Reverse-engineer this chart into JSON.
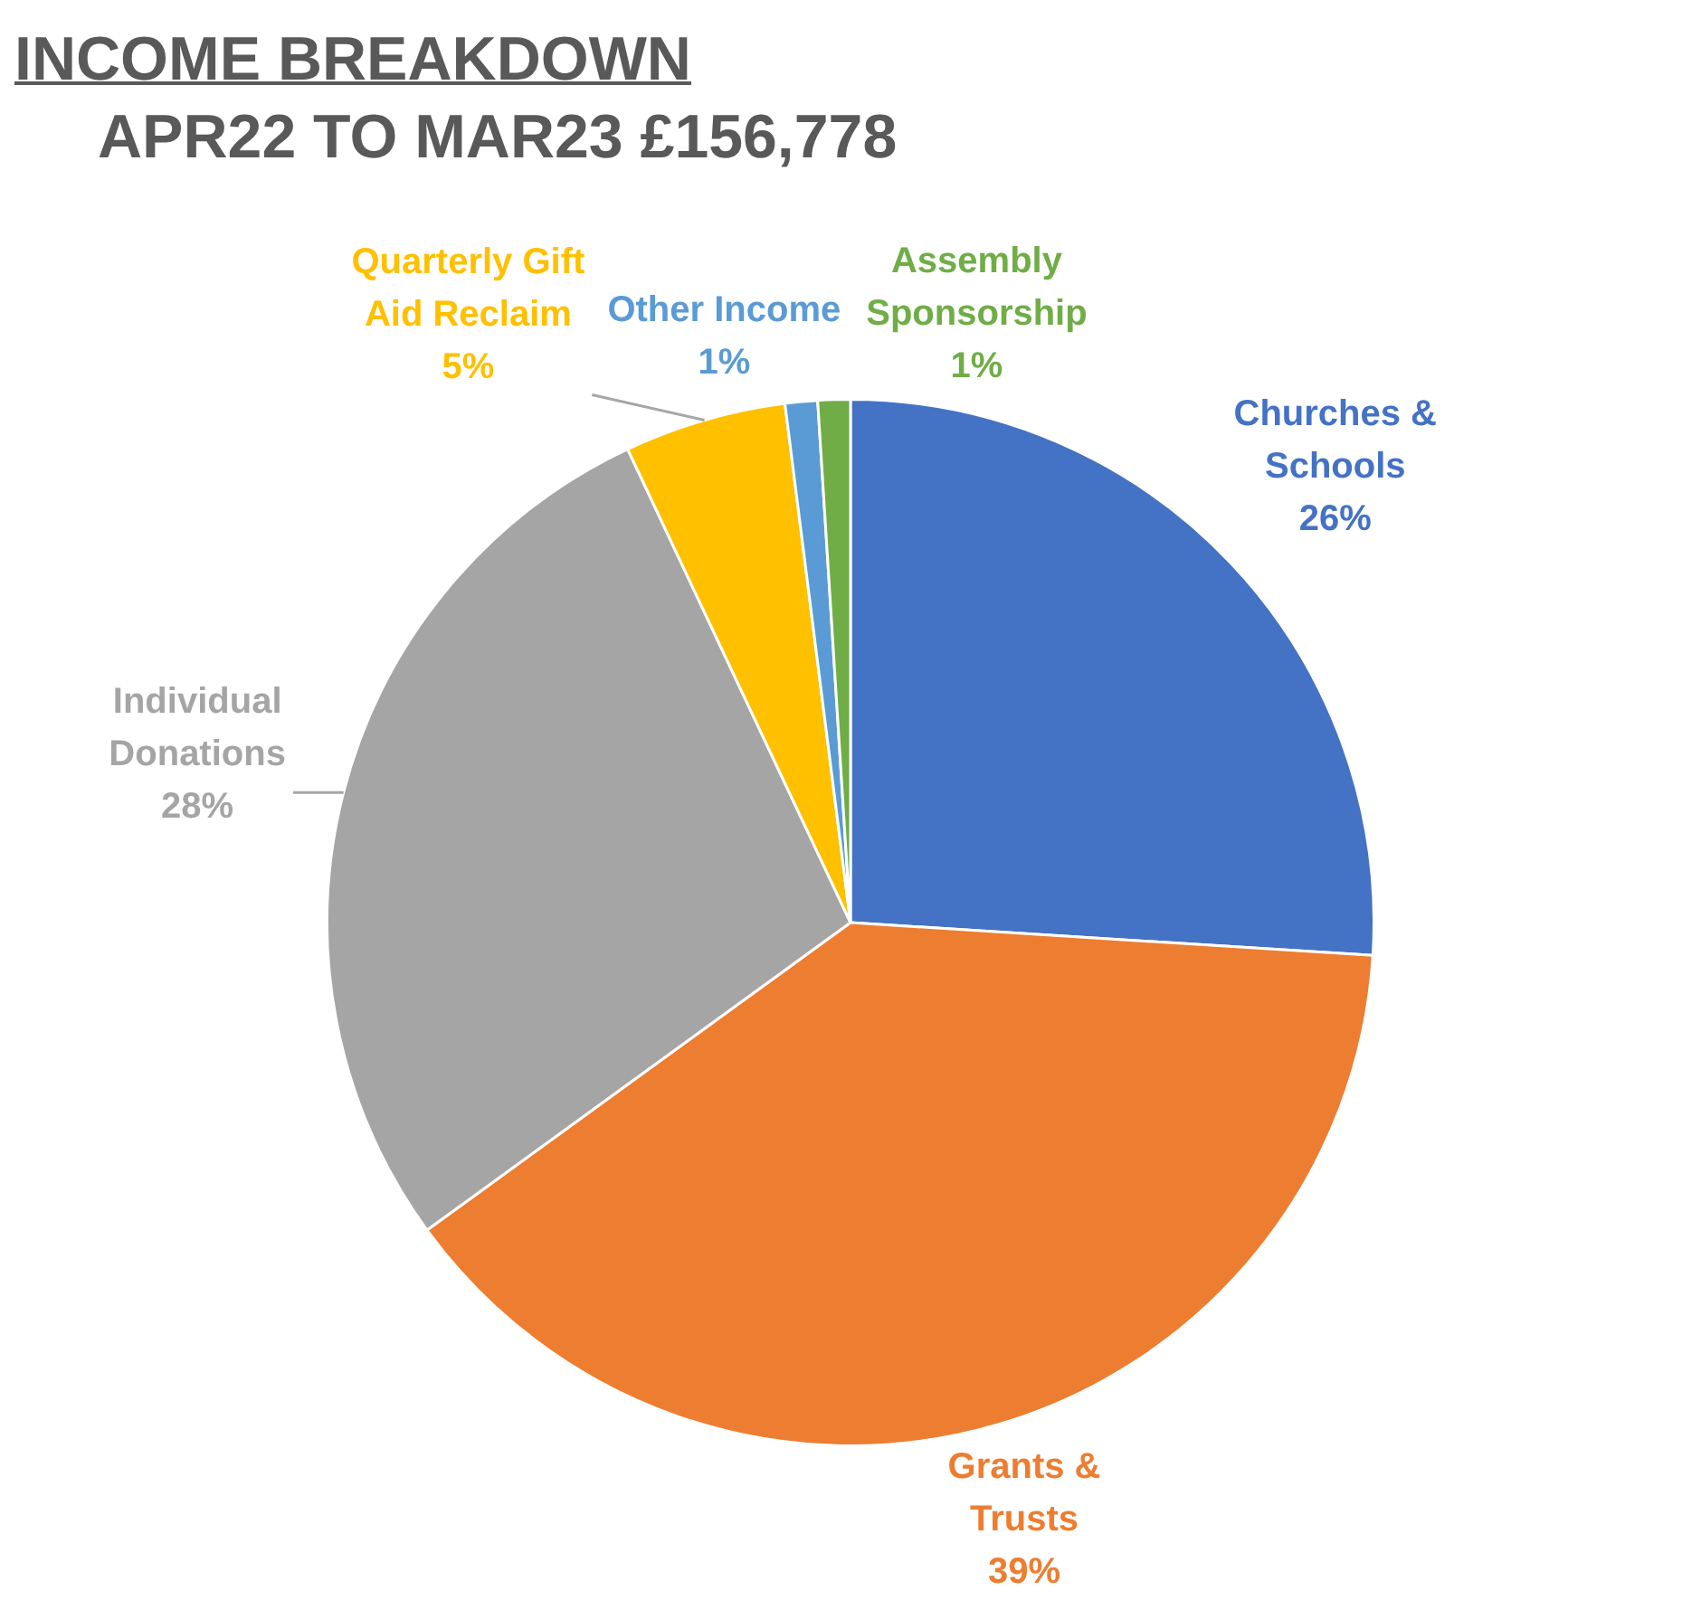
{
  "chart_data": {
    "type": "pie",
    "title": "INCOME BREAKDOWN",
    "subtitle": "APR22 TO MAR23 £156,778",
    "categories": [
      "Churches & Schools",
      "Grants & Trusts",
      "Individual Donations",
      "Quarterly Gift Aid Reclaim",
      "Other Income",
      "Assembly Sponsorship"
    ],
    "values": [
      26,
      39,
      28,
      5,
      1,
      1
    ],
    "colors": [
      "#4472c4",
      "#ed7d31",
      "#a5a5a5",
      "#ffc000",
      "#5b9bd5",
      "#70ad47"
    ],
    "value_labels": [
      "26%",
      "39%",
      "28%",
      "5%",
      "1%",
      "1%"
    ],
    "legend": false
  }
}
